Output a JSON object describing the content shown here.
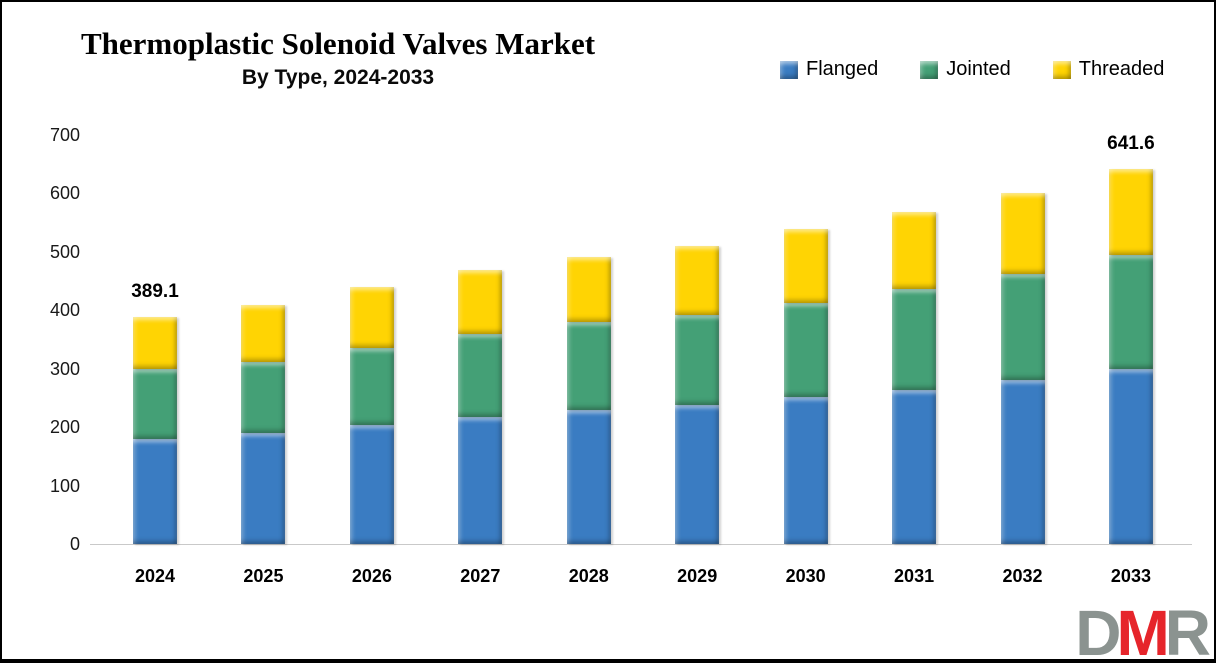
{
  "chart_data": {
    "type": "bar",
    "stacked": true,
    "title": "Thermoplastic Solenoid Valves Market",
    "subtitle": "By Type, 2024-2033",
    "categories": [
      "2024",
      "2025",
      "2026",
      "2027",
      "2028",
      "2029",
      "2030",
      "2031",
      "2032",
      "2033"
    ],
    "series": [
      {
        "name": "Flanged",
        "color": "#3A7CC2",
        "values": [
          180,
          190,
          204,
          217,
          229,
          238,
          252,
          264,
          281,
          300
        ]
      },
      {
        "name": "Jointed",
        "color": "#44A076",
        "values": [
          120,
          122,
          132,
          143,
          151,
          154,
          161,
          173,
          181,
          195
        ]
      },
      {
        "name": "Threaded",
        "color": "#FFD403",
        "values": [
          89.1,
          97,
          104,
          109,
          112,
          118,
          126,
          131,
          139,
          146.6
        ]
      }
    ],
    "totals": [
      389.1,
      409,
      440,
      469,
      492,
      510,
      539,
      568,
      601,
      641.6
    ],
    "bar_labels": [
      {
        "category": "2024",
        "label": "389.1"
      },
      {
        "category": "2033",
        "label": "641.6"
      }
    ],
    "ylim": [
      0,
      700
    ],
    "yticks": [
      0,
      100,
      200,
      300,
      400,
      500,
      600,
      700
    ],
    "grid": false,
    "legend_position": "top-right"
  },
  "logo": {
    "letters": [
      {
        "char": "D",
        "color": "#8B9390"
      },
      {
        "char": "M",
        "color": "#E6252B"
      },
      {
        "char": "R",
        "color": "#8B9390"
      }
    ]
  }
}
